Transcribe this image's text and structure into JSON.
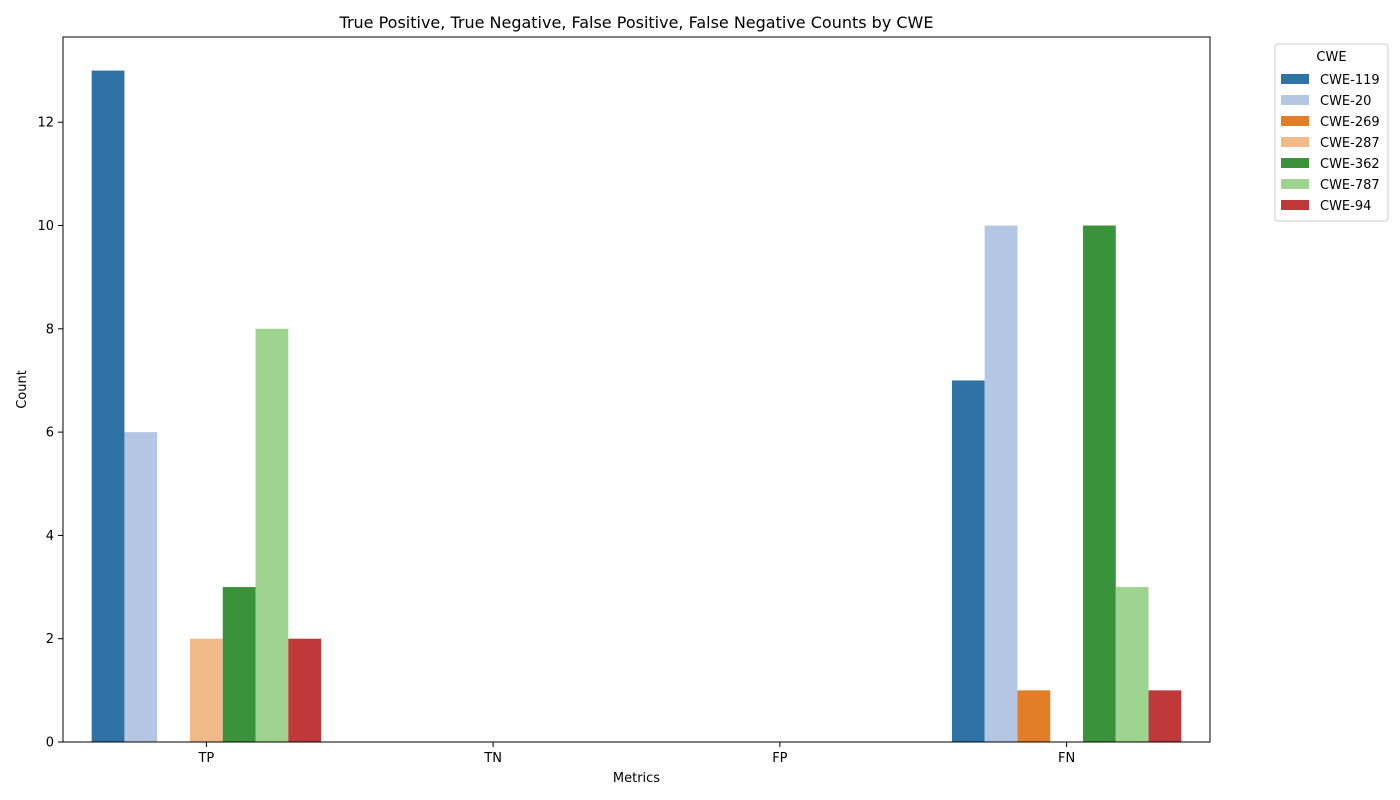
{
  "chart_data": {
    "type": "bar",
    "title": "True Positive, True Negative, False Positive, False Negative Counts by CWE",
    "xlabel": "Metrics",
    "ylabel": "Count",
    "categories": [
      "TP",
      "TN",
      "FP",
      "FN"
    ],
    "ylim": [
      0,
      13.65
    ],
    "yticks": [
      0,
      2,
      4,
      6,
      8,
      10,
      12
    ],
    "grid": false,
    "legend": {
      "title": "CWE",
      "placement": "outside-top-right"
    },
    "series": [
      {
        "name": "CWE-119",
        "color": "#2e72a6",
        "values": [
          13,
          0,
          0,
          7
        ]
      },
      {
        "name": "CWE-20",
        "color": "#b3c7e4",
        "values": [
          6,
          0,
          0,
          10
        ]
      },
      {
        "name": "CWE-269",
        "color": "#e27e27",
        "values": [
          0,
          0,
          0,
          1
        ]
      },
      {
        "name": "CWE-287",
        "color": "#f0bb88",
        "values": [
          2,
          0,
          0,
          0
        ]
      },
      {
        "name": "CWE-362",
        "color": "#3a923a",
        "values": [
          3,
          0,
          0,
          10
        ]
      },
      {
        "name": "CWE-787",
        "color": "#9fd490",
        "values": [
          8,
          0,
          0,
          3
        ]
      },
      {
        "name": "CWE-94",
        "color": "#c0393a",
        "values": [
          2,
          0,
          0,
          1
        ]
      }
    ]
  }
}
